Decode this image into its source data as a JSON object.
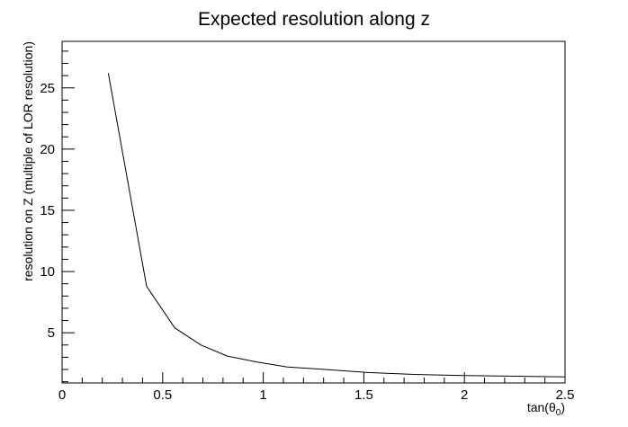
{
  "chart_data": {
    "type": "line",
    "title": "Expected resolution along z",
    "xlabel": "tan(θ0)",
    "xlabel_base": "tan(θ",
    "xlabel_sub": "0",
    "xlabel_close": ")",
    "ylabel": "resolution on Z (multiple of LOR resolution)",
    "xlim": [
      0,
      2.5
    ],
    "ylim": [
      0.9,
      28.8
    ],
    "grid": false,
    "x_ticks": [
      0,
      0.5,
      1,
      1.5,
      2,
      2.5
    ],
    "x_tick_labels": [
      "0",
      "0.5",
      "1",
      "1.5",
      "2",
      "2.5"
    ],
    "y_ticks": [
      5,
      10,
      15,
      20,
      25
    ],
    "y_tick_labels": [
      "5",
      "10",
      "15",
      "20",
      "25"
    ],
    "series": [
      {
        "x": [
          0.23,
          0.42,
          0.56,
          0.69,
          0.82,
          0.97,
          1.12,
          1.31,
          1.52,
          1.75,
          2.0,
          2.5
        ],
        "y": [
          26.2,
          8.8,
          5.4,
          4.0,
          3.1,
          2.6,
          2.2,
          2.0,
          1.75,
          1.6,
          1.5,
          1.4
        ],
        "color": "#000000"
      }
    ]
  }
}
